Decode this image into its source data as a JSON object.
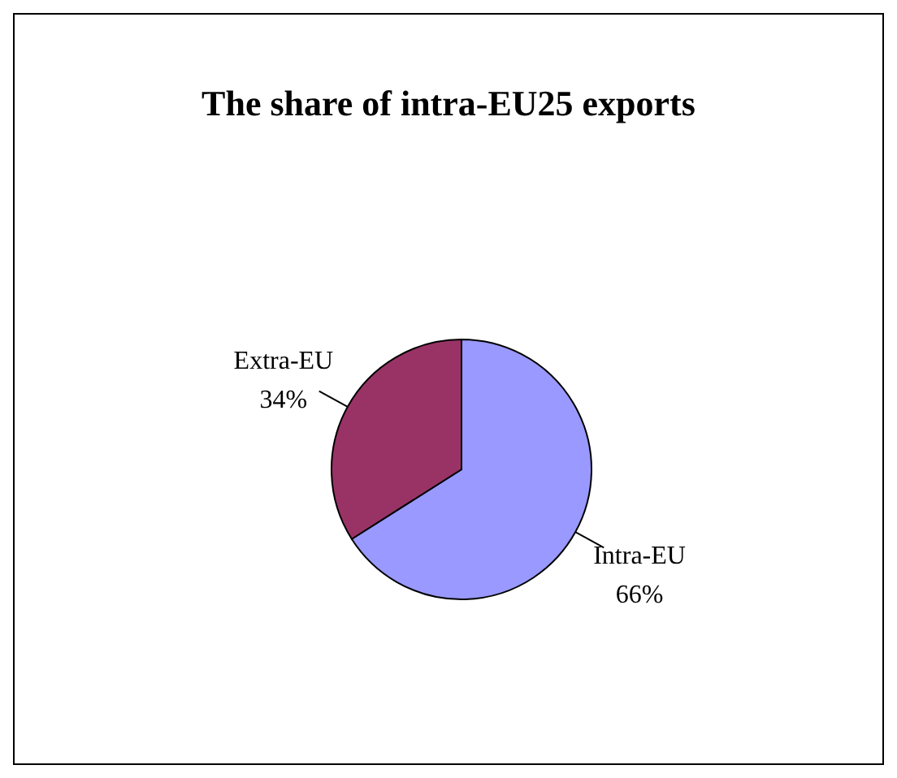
{
  "chart_data": {
    "type": "pie",
    "title": "The share of intra-EU25 exports",
    "categories": [
      "Intra-EU",
      "Extra-EU"
    ],
    "values": [
      66,
      34
    ],
    "colors": [
      "#9999ff",
      "#993366"
    ],
    "value_labels": [
      "66%",
      "34%"
    ]
  }
}
